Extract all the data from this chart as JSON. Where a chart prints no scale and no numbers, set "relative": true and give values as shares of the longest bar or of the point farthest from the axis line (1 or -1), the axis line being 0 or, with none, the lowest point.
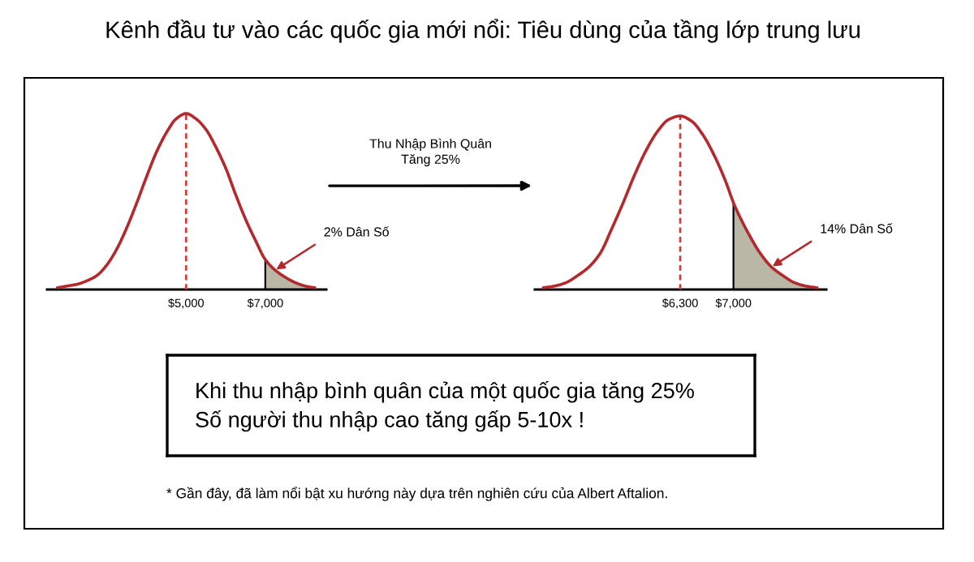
{
  "chart_data": [
    {
      "type": "line",
      "title": "Kênh đầu tư vào các quốc gia mới nổi: Tiêu dùng của tầng lớp trung lưu",
      "relative": true,
      "tick_labels": "x",
      "series": [
        {
          "type": "line",
          "color": "#b3292c",
          "x": [
            1750,
            2000,
            2250,
            2500,
            2750,
            3000,
            3250,
            3500,
            3750,
            4000,
            4250,
            4500,
            4750,
            5000,
            5250,
            5500,
            5750,
            6000,
            6250,
            6500,
            6750,
            7000,
            7250,
            7500,
            7750,
            8000,
            8250
          ],
          "values": [
            0.01,
            0.02,
            0.03,
            0.05,
            0.08,
            0.14,
            0.23,
            0.35,
            0.49,
            0.64,
            0.78,
            0.89,
            0.97,
            1,
            0.97,
            0.91,
            0.81,
            0.69,
            0.54,
            0.4,
            0.28,
            0.17,
            0.11,
            0.07,
            0.04,
            0.02,
            0.01
          ]
        },
        {
          "type": "area",
          "color": "#bab7a6",
          "x": [
            7000,
            7250,
            7500,
            7750,
            8000,
            8250
          ],
          "values": [
            0.17,
            0.11,
            0.07,
            0.04,
            0.02,
            0.01
          ]
        }
      ],
      "xlim": [
        1490,
        8540
      ],
      "xticks": [
        {
          "value": 5000,
          "label": "$5,000"
        },
        {
          "value": 7000,
          "label": "$7,000"
        }
      ],
      "ref_lines": [
        {
          "axis": "x",
          "value": 5000,
          "color": "#d03a36",
          "line_style": "dashed"
        },
        {
          "axis": "x",
          "value": 7000,
          "color": "#000000",
          "line_style": "solid"
        }
      ],
      "annotations": [
        "Thu Nhập Bình Quân\nTăng 25%",
        {
          "text": "2% Dân Số",
          "x": 7250,
          "y": 0.11
        }
      ]
    },
    {
      "type": "line",
      "relative": true,
      "tick_labels": "x",
      "series": [
        {
          "type": "line",
          "color": "#b3292c",
          "x": [
            4500,
            4650,
            4800,
            4950,
            5100,
            5250,
            5400,
            5550,
            5700,
            5850,
            6000,
            6150,
            6300,
            6450,
            6600,
            6750,
            6900,
            7000,
            7050,
            7200,
            7350,
            7500,
            7650,
            7800,
            7950,
            8100
          ],
          "values": [
            0.01,
            0.02,
            0.04,
            0.08,
            0.13,
            0.21,
            0.35,
            0.5,
            0.66,
            0.8,
            0.91,
            0.98,
            1,
            0.97,
            0.89,
            0.77,
            0.62,
            0.5,
            0.45,
            0.32,
            0.21,
            0.13,
            0.08,
            0.04,
            0.02,
            0.01
          ]
        },
        {
          "type": "area",
          "color": "#bab7a6",
          "x": [
            7000,
            7050,
            7200,
            7350,
            7500,
            7650,
            7800,
            7950,
            8100
          ],
          "values": [
            0.5,
            0.45,
            0.32,
            0.21,
            0.13,
            0.08,
            0.04,
            0.02,
            0.01
          ]
        }
      ],
      "xlim": [
        4390,
        8220
      ],
      "xticks": [
        {
          "value": 6300,
          "label": "$6,300"
        },
        {
          "value": 7000,
          "label": "$7,000"
        }
      ],
      "ref_lines": [
        {
          "axis": "x",
          "value": 6300,
          "color": "#d03a36",
          "line_style": "dashed"
        },
        {
          "axis": "x",
          "value": 7000,
          "color": "#000000",
          "line_style": "solid"
        }
      ],
      "annotations": [
        {
          "text": "14% Dân Số",
          "x": 7500,
          "y": 0.13
        }
      ]
    },
    {
      "type": "other",
      "annotations": [
        "Khi thu nhập bình quân của một quốc gia tăng 25%\nSố người thu nhập cao tăng gấp 5-10x !",
        "* Gần đây, đã làm nổi bật xu hướng này dựa trên nghiên cứu của Albert Aftalion."
      ]
    }
  ]
}
